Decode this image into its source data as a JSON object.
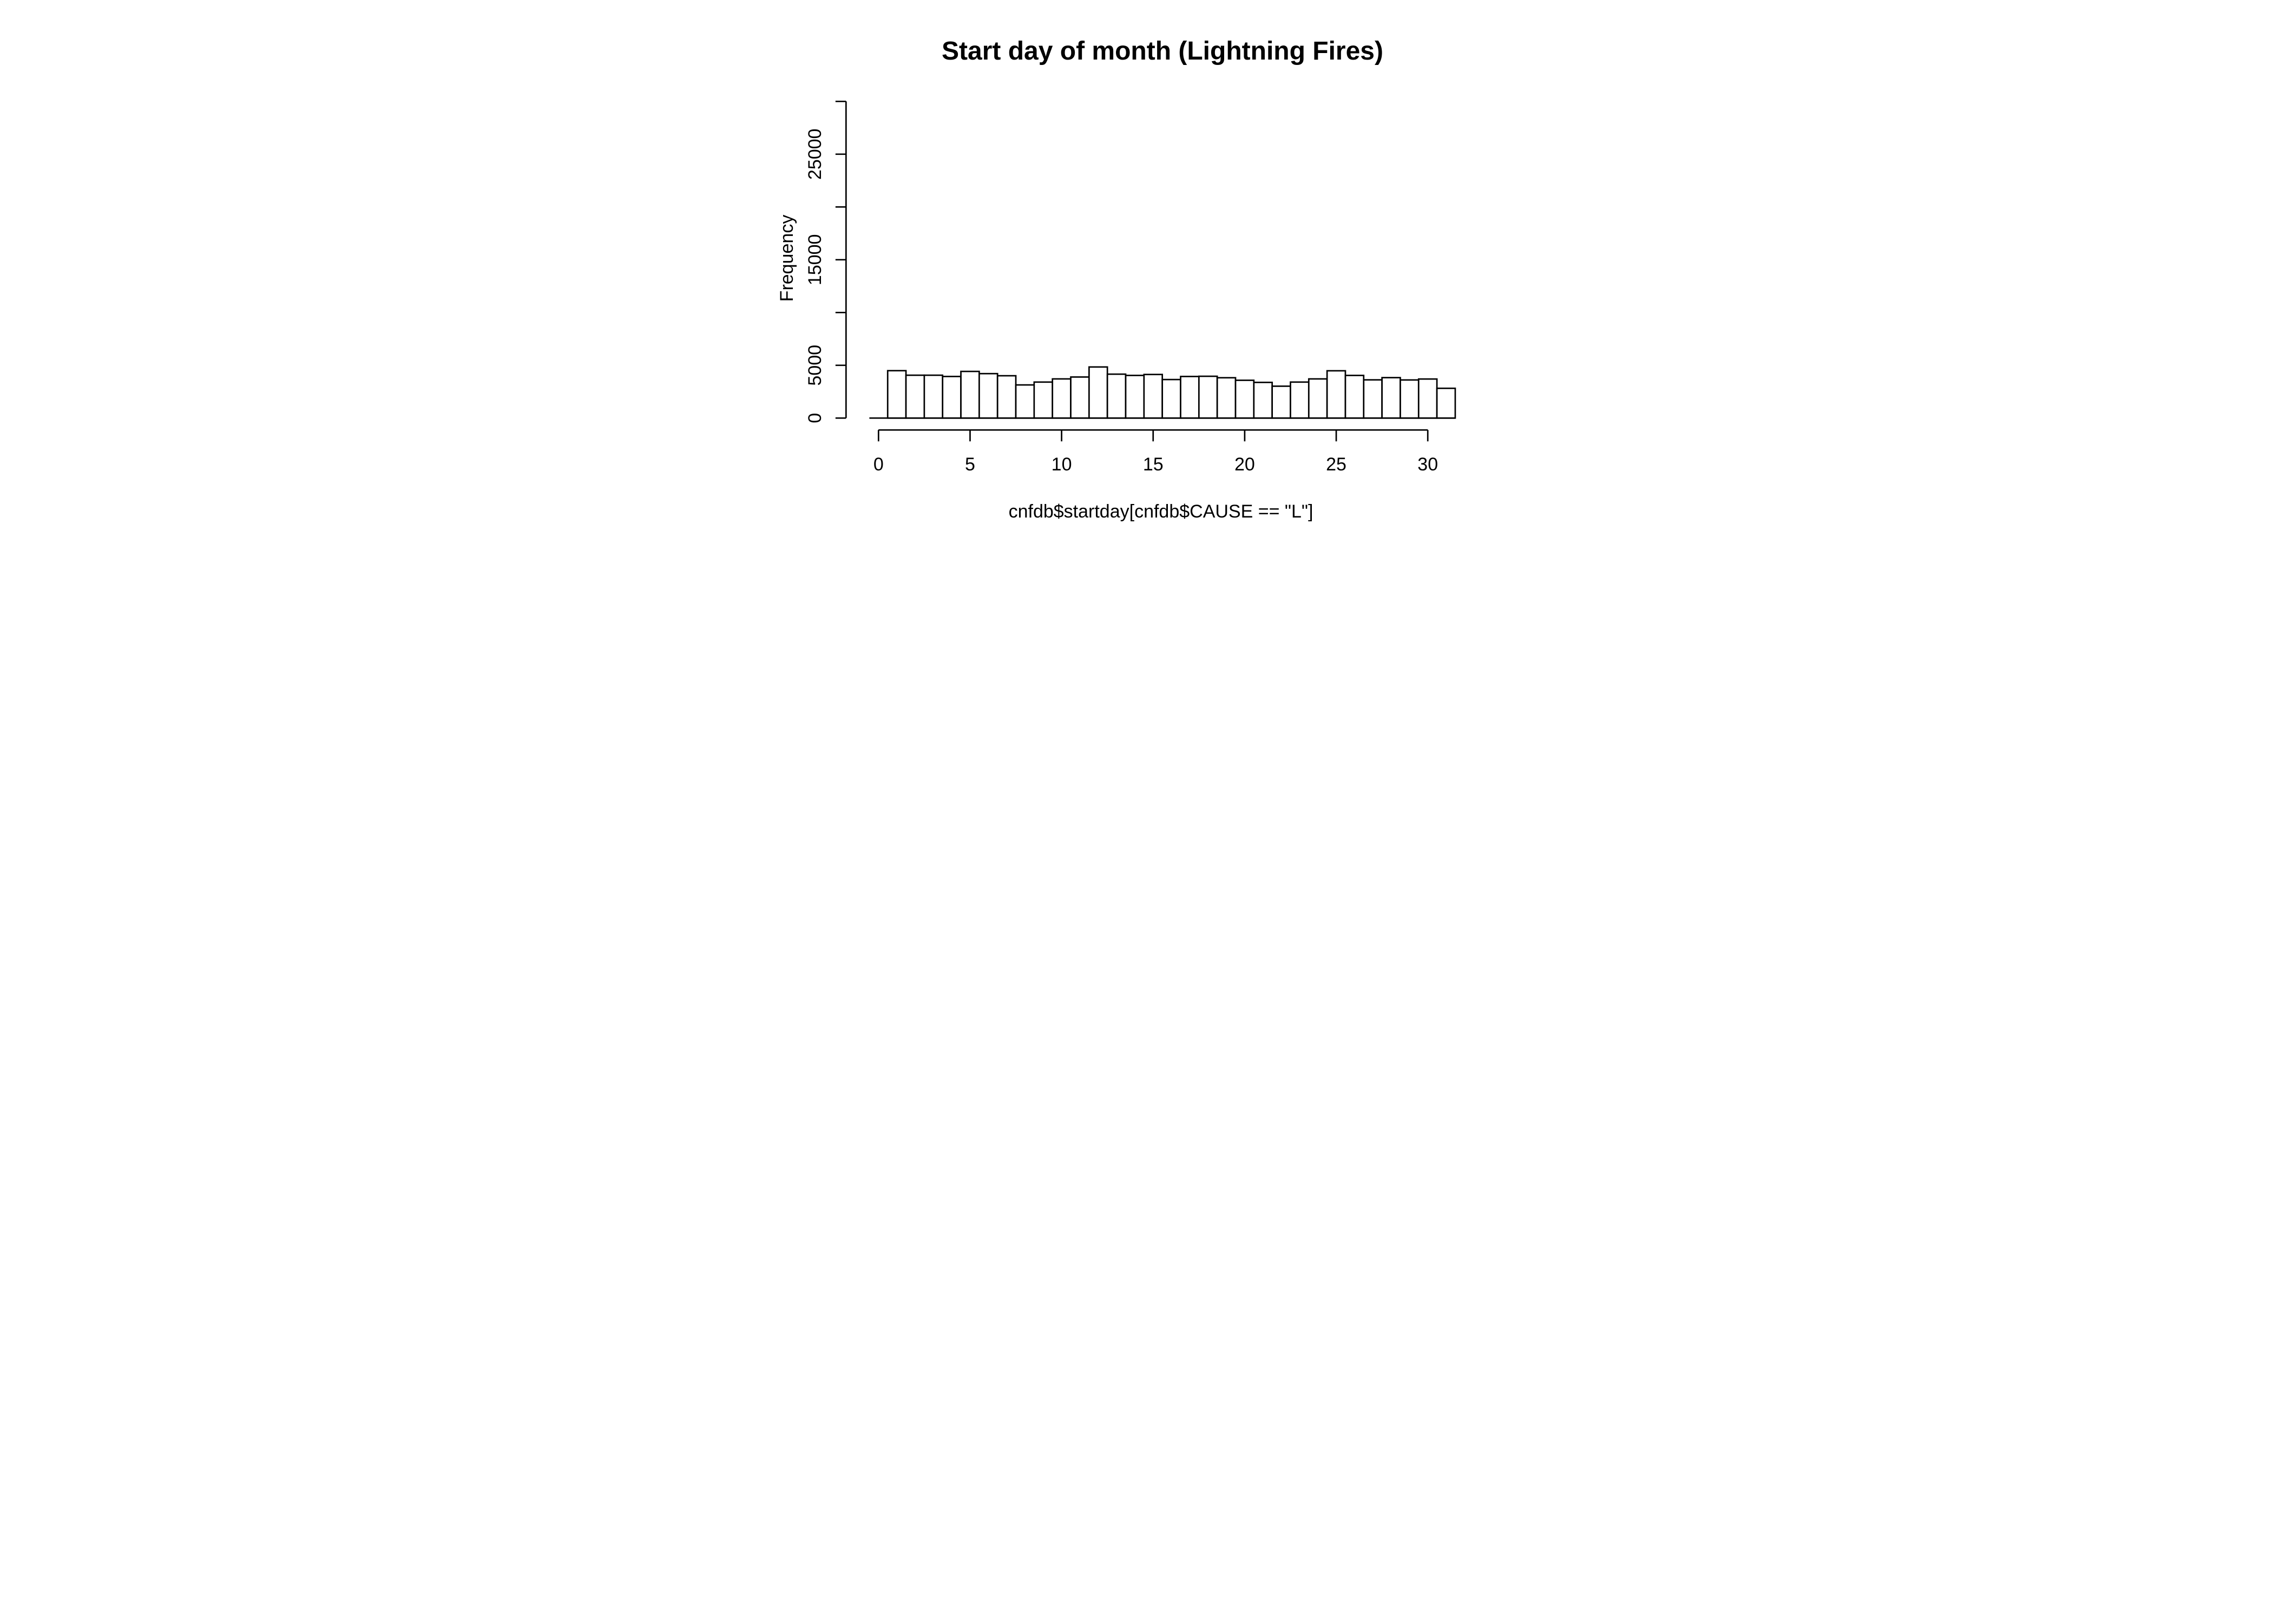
{
  "figure": {
    "title": "Start day of month (Lightning Fires)",
    "xlabel": "cnfdb$startday[cnfdb$CAUSE == \"L\"]",
    "ylabel": "Frequency",
    "background_color": "#ffffff",
    "foreground_color": "#000000"
  },
  "chart_data": {
    "type": "bar",
    "subtype": "histogram",
    "title": "Start day of month (Lightning Fires)",
    "xlabel": "cnfdb$startday[cnfdb$CAUSE == \"L\"]",
    "ylabel": "Frequency",
    "categories": [
      1,
      2,
      3,
      4,
      5,
      6,
      7,
      8,
      9,
      10,
      11,
      12,
      13,
      14,
      15,
      16,
      17,
      18,
      19,
      20,
      21,
      22,
      23,
      24,
      25,
      26,
      27,
      28,
      29,
      30,
      31
    ],
    "values": [
      4490,
      4060,
      4060,
      3940,
      4420,
      4210,
      4010,
      3140,
      3410,
      3710,
      3890,
      4840,
      4160,
      4040,
      4130,
      3650,
      3940,
      3960,
      3820,
      3580,
      3380,
      3020,
      3410,
      3710,
      4480,
      4040,
      3620,
      3830,
      3610,
      3700,
      2820
    ],
    "bin_width": 1,
    "bin_start": -0.5,
    "first_bin_empty_value": 0,
    "xlim": [
      -0.5,
      31.5
    ],
    "ylim": [
      0,
      30000
    ],
    "xticks": [
      0,
      5,
      10,
      15,
      20,
      25,
      30
    ],
    "xtick_labels": [
      "0",
      "5",
      "10",
      "15",
      "20",
      "25",
      "30"
    ],
    "yticks": [
      0,
      5000,
      10000,
      15000,
      20000,
      25000,
      30000
    ],
    "ytick_labeled_values": [
      0,
      5000,
      15000,
      25000
    ],
    "ytick_labels": [
      "0",
      "5000",
      "15000",
      "25000"
    ],
    "grid": false,
    "legend": false,
    "bar_fill": "#ffffff",
    "bar_stroke": "#000000",
    "axis_color": "#000000"
  }
}
